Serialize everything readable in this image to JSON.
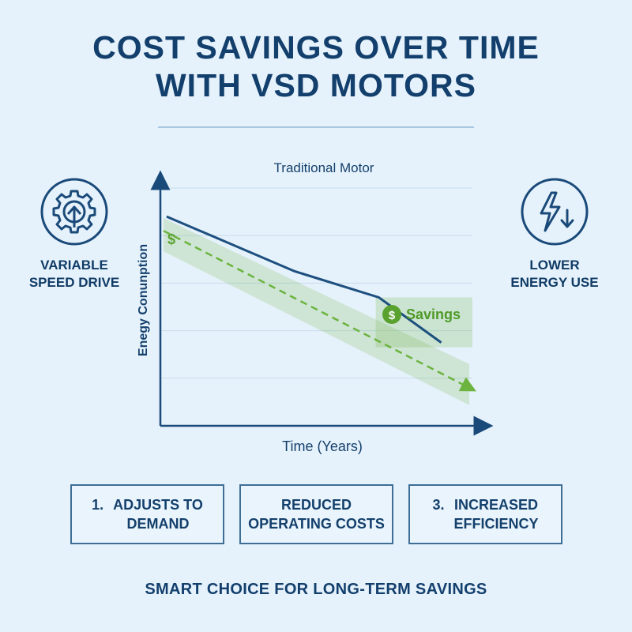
{
  "title": {
    "line1": "COST SAVINGS OVER TIME",
    "line2": "WITH VSD MOTORS"
  },
  "left_feature": {
    "icon": "gear-arrow-icon",
    "line1": "VARIABLE",
    "line2": "SPEED DRIVE"
  },
  "right_feature": {
    "icon": "lightning-down-icon",
    "line1": "LOWER",
    "line2": "ENERGY USE"
  },
  "chart_data": {
    "type": "line",
    "xlabel": "Time (Years)",
    "ylabel": "Enegy Conunption",
    "grid": true,
    "xlim": [
      0,
      10
    ],
    "ylim": [
      0,
      10
    ],
    "series": [
      {
        "name": "Traditional Motor",
        "x": [
          0.2,
          4.3,
          7.0,
          9.0
        ],
        "y": [
          8.8,
          6.5,
          5.4,
          3.5
        ],
        "color": "#1d4f7f"
      },
      {
        "name": "",
        "x": [
          0.1,
          9.9
        ],
        "y": [
          8.2,
          1.6
        ],
        "color": "#6cb33f",
        "dashed": true
      }
    ],
    "annotations": {
      "dollar_marker": "$",
      "savings_label": "Savings",
      "savings_badge": "$"
    },
    "colors": {
      "savings_fill": "#6cb33f",
      "axis": "#1a4a7a"
    }
  },
  "boxes": [
    {
      "number": "1.",
      "line1": "ADJUSTS TO",
      "line2": "DEMAND"
    },
    {
      "number": "",
      "line1": "REDUCED",
      "line2": "OPERATING COSTS"
    },
    {
      "number": "3.",
      "line1": "INCREASED",
      "line2": "EFFICIENCY"
    }
  ],
  "footer": "SMART CHOICE FOR LONG-TERM SAVINGS"
}
